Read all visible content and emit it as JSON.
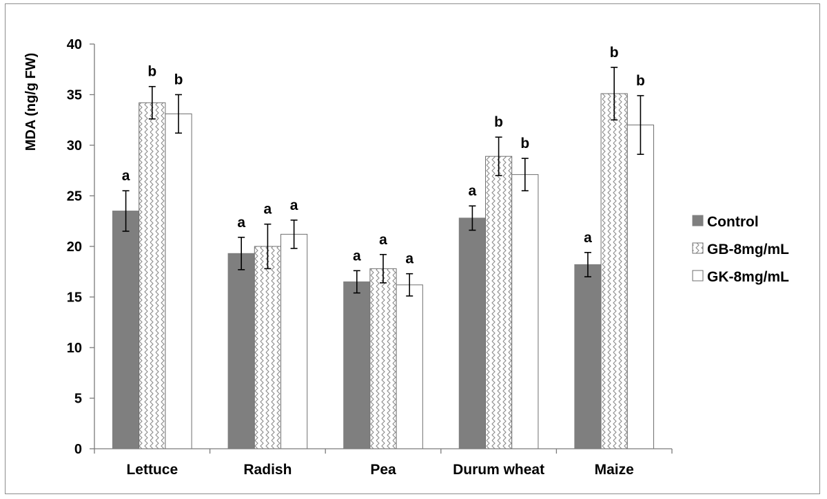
{
  "chart_data": {
    "type": "bar",
    "title": "",
    "xlabel": "",
    "ylabel": "MDA (ng/g FW)",
    "ylim": [
      0,
      40
    ],
    "yticks": [
      0,
      5,
      10,
      15,
      20,
      25,
      30,
      35,
      40
    ],
    "grid": false,
    "legend_position": "right",
    "categories": [
      "Lettuce",
      "Radish",
      "Pea",
      "Durum wheat",
      "Maize"
    ],
    "series": [
      {
        "name": "Control",
        "fill": "solid-gray",
        "color": "#7f7f7f",
        "values": [
          23.5,
          19.3,
          16.5,
          22.8,
          18.2
        ],
        "errors": [
          2.0,
          1.6,
          1.1,
          1.2,
          1.2
        ],
        "letters": [
          "a",
          "a",
          "a",
          "a",
          "a"
        ]
      },
      {
        "name": "GB-8mg/mL",
        "fill": "zigzag-hatch",
        "color": "#9a9a9a",
        "values": [
          34.2,
          20.0,
          17.8,
          28.9,
          35.1
        ],
        "errors": [
          1.6,
          2.2,
          1.4,
          1.9,
          2.6
        ],
        "letters": [
          "b",
          "a",
          "a",
          "b",
          "b"
        ]
      },
      {
        "name": "GK-8mg/mL",
        "fill": "white",
        "color": "#ffffff",
        "values": [
          33.1,
          21.2,
          16.2,
          27.1,
          32.0
        ],
        "errors": [
          1.9,
          1.4,
          1.1,
          1.6,
          2.9
        ],
        "letters": [
          "b",
          "a",
          "a",
          "b",
          "b"
        ]
      }
    ]
  }
}
